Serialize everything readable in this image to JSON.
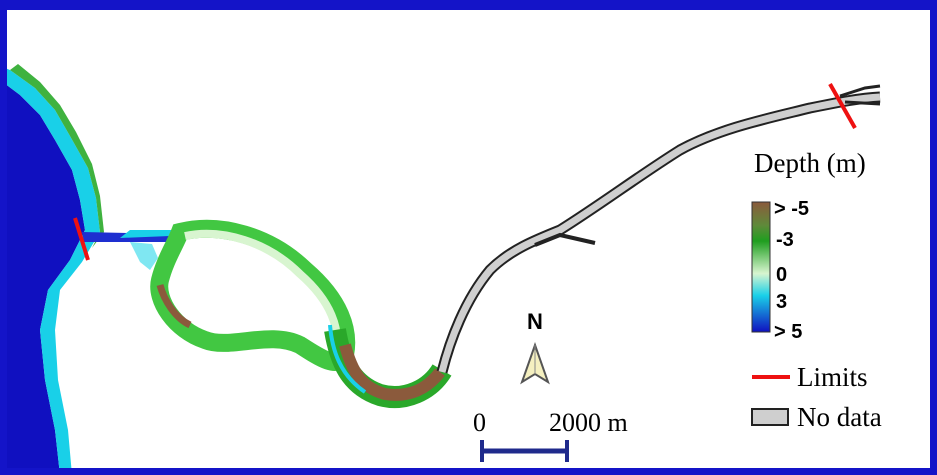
{
  "legend": {
    "title": "Depth (m)",
    "ticks": [
      "> -5",
      "-3",
      "0",
      "3",
      "> 5"
    ],
    "limits_label": "Limits",
    "nodata_label": "No data",
    "colors": {
      "shallow": "#8b5a3c",
      "mid_green": "#1f9e1f",
      "light": "#d8f5d0",
      "cyan": "#19d0e8",
      "deep": "#1010c0",
      "limits": "#ee1111",
      "nodata": "#cfcfcf"
    }
  },
  "scale_bar": {
    "start_label": "0",
    "end_label": "2000 m"
  },
  "north_arrow": {
    "label": "N"
  },
  "frame_color": "#1414c8"
}
